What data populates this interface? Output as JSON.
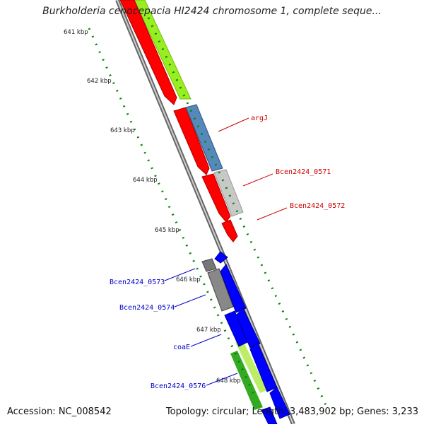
{
  "title": "Burkholderia cenocepacia HI2424 chromosome 1, complete seque...",
  "footer": {
    "accession": "Accession: NC_008542",
    "topology": "Topology: circular; Length: 3,483,902 bp; Genes: 3,233"
  },
  "scale_labels": [
    "641 kbp",
    "642 kbp",
    "643 kbp",
    "644 kbp",
    "645 kbp",
    "646 kbp",
    "647 kbp",
    "648 kbp"
  ],
  "gene_labels": {
    "argJ": "argJ",
    "bcen0571": "Bcen2424_0571",
    "bcen0572": "Bcen2424_0572",
    "bcen0573": "Bcen2424_0573",
    "bcen0574": "Bcen2424_0574",
    "coaE": "coaE",
    "bcen0576": "Bcen2424_0576"
  },
  "colors": {
    "cds_forward": "#ff0000",
    "cds_reverse": "#0000ff",
    "gc_skew": "#99ee22",
    "scale_ticks": "#008800",
    "label_red": "#cc0000",
    "label_blue": "#0000cc"
  }
}
